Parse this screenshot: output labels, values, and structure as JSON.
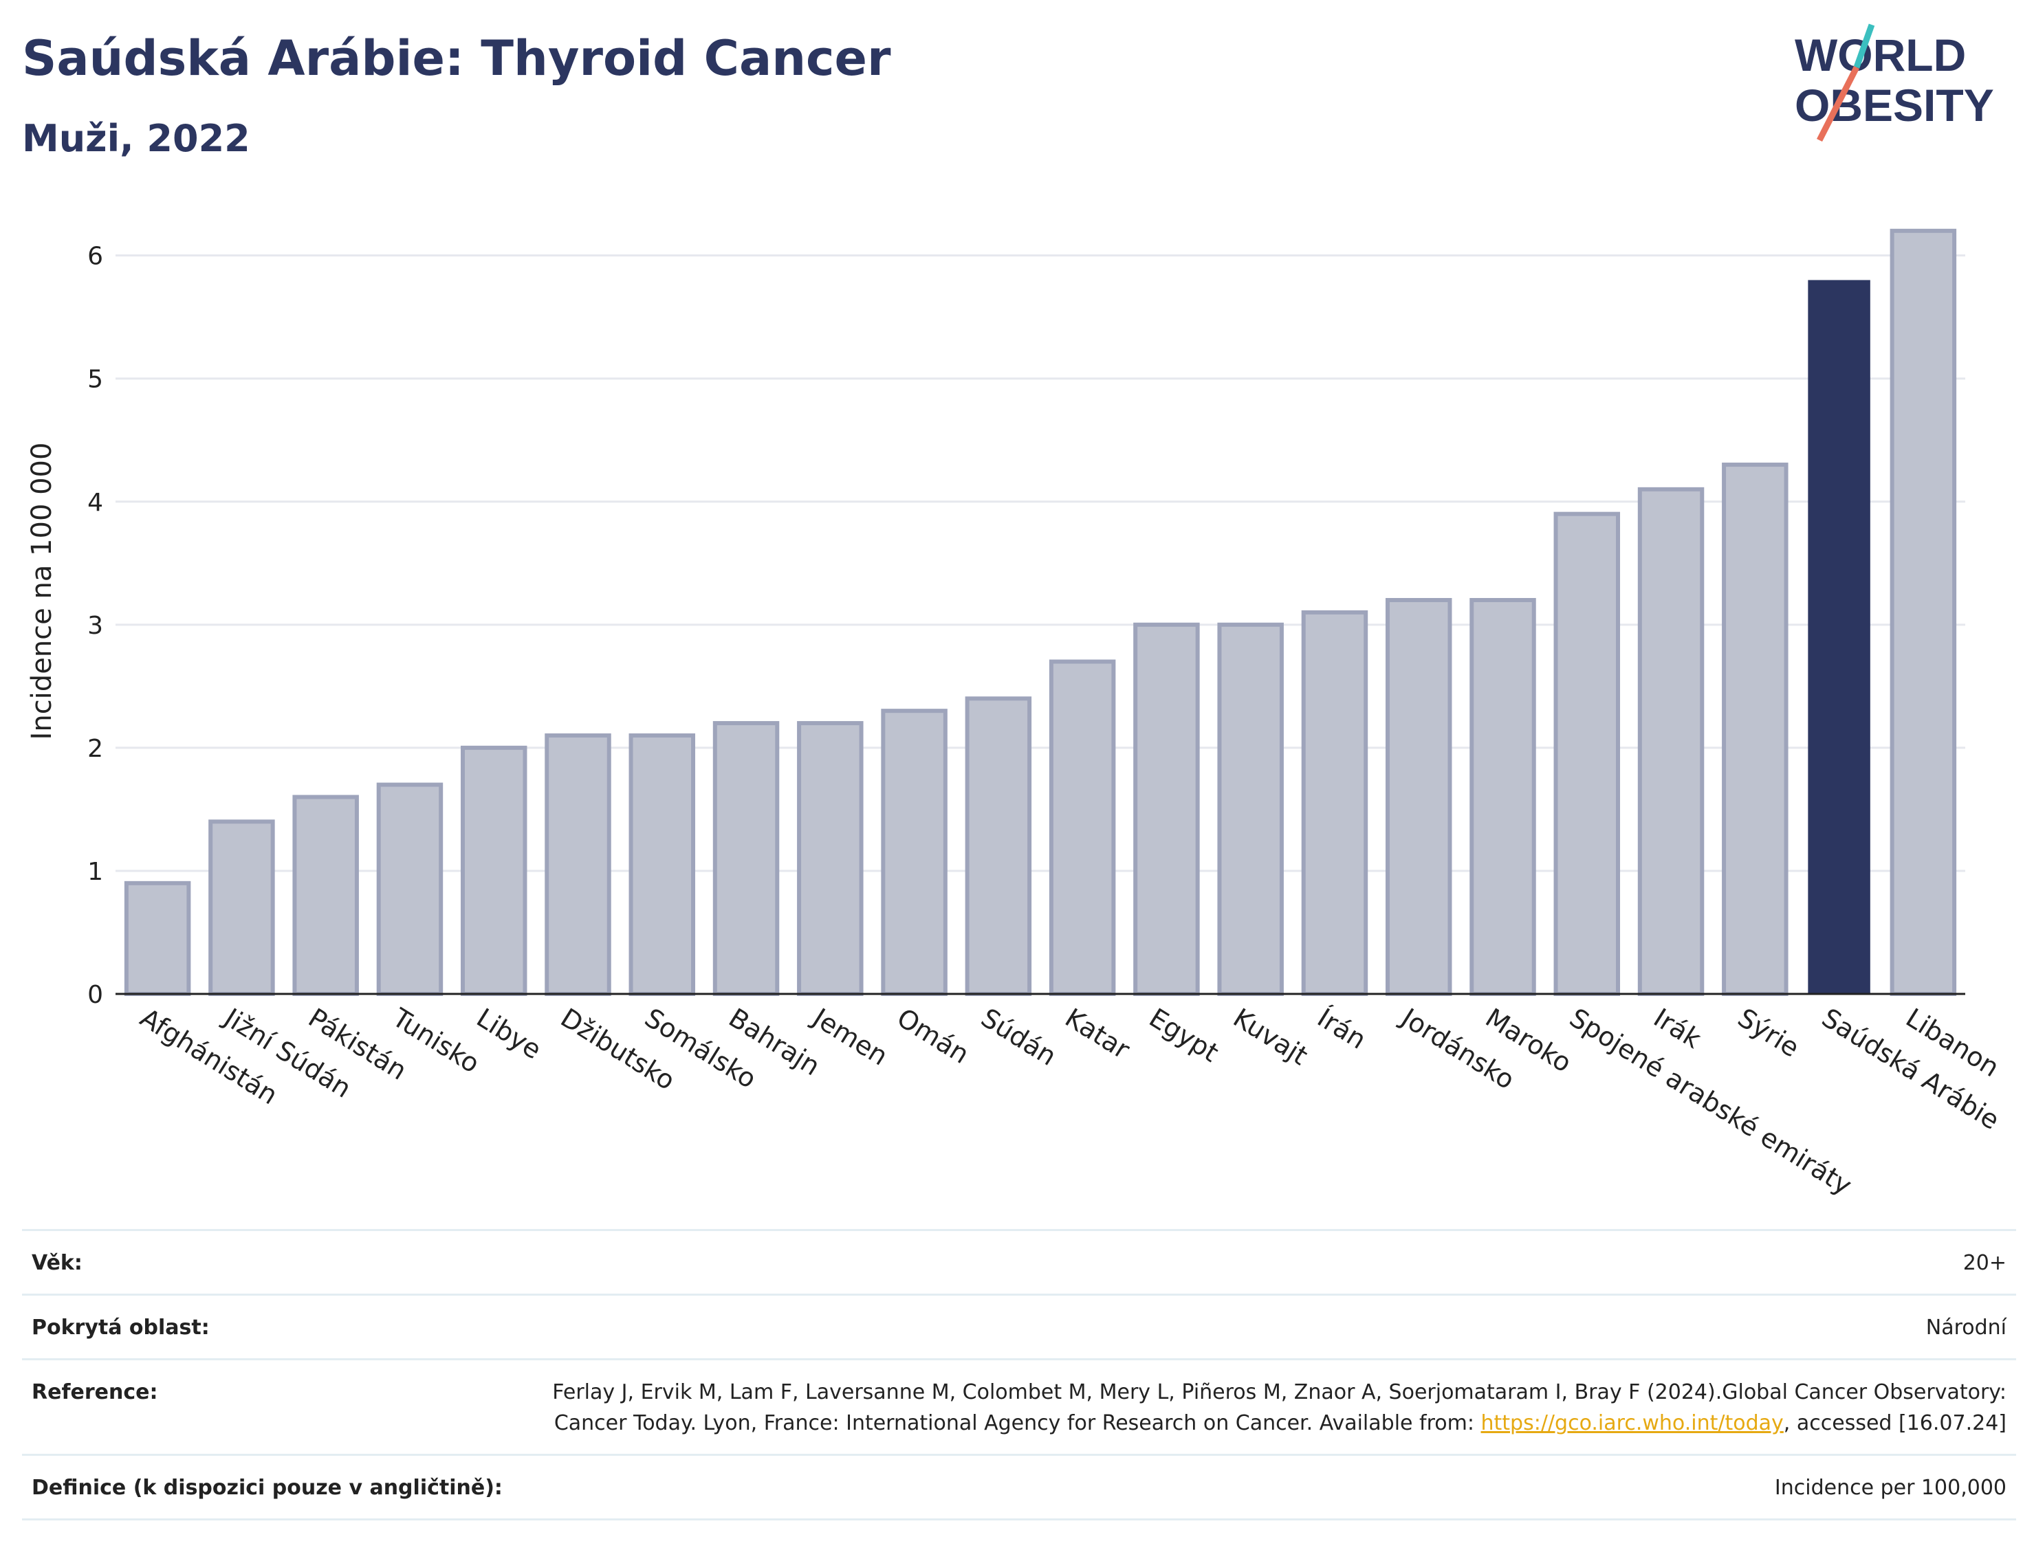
{
  "header": {
    "title": "Saúdská Arábie: Thyroid Cancer",
    "subtitle": "Muži, 2022",
    "logo_line1": "WORLD",
    "logo_line2": "OBESITY"
  },
  "colors": {
    "highlight_bar": "#2c3660",
    "other_bar": "#bec2cf",
    "other_bar_border": "#9ea4bb",
    "grid": "#e6e8ee",
    "logo_teal": "#3bbfbf",
    "logo_coral": "#e8705a"
  },
  "chart_data": {
    "type": "bar",
    "title": "Saúdská Arábie: Thyroid Cancer",
    "subtitle": "Muži, 2022",
    "xlabel": "",
    "ylabel": "Incidence na 100 000",
    "ylim": [
      0,
      6.4
    ],
    "yticks": [
      0,
      1,
      2,
      3,
      4,
      5,
      6
    ],
    "grid": true,
    "legend": "none",
    "highlight": "Saúdská Arábie",
    "categories": [
      "Afghánistán",
      "Jižní Súdán",
      "Pákistán",
      "Tunisko",
      "Libye",
      "Džibutsko",
      "Somálsko",
      "Bahrajn",
      "Jemen",
      "Omán",
      "Súdán",
      "Katar",
      "Egypt",
      "Kuvajt",
      "Írán",
      "Jordánsko",
      "Maroko",
      "Spojené arabské emiráty",
      "Irák",
      "Sýrie",
      "Saúdská Arábie",
      "Libanon"
    ],
    "values": [
      0.9,
      1.4,
      1.6,
      1.7,
      2.0,
      2.1,
      2.1,
      2.2,
      2.2,
      2.3,
      2.4,
      2.7,
      3.0,
      3.0,
      3.1,
      3.2,
      3.2,
      3.9,
      4.1,
      4.3,
      5.8,
      6.2
    ]
  },
  "meta": {
    "age_label": "Věk:",
    "age_value": "20+",
    "coverage_label": "Pokrytá oblast:",
    "coverage_value": "Národní",
    "reference_label": "Reference:",
    "reference_text": "Ferlay J, Ervik M, Lam F, Laversanne M, Colombet M, Mery L, Piñeros M, Znaor A, Soerjomataram I, Bray F (2024).Global Cancer Observatory: Cancer Today. Lyon, France: International Agency for Research on Cancer. Available from:",
    "reference_link": "https://gco.iarc.who.int/today",
    "reference_tail": ", accessed [16.07.24]",
    "definition_label": "Definice (k dispozici pouze v angličtině):",
    "definition_value": "Incidence per 100,000"
  }
}
